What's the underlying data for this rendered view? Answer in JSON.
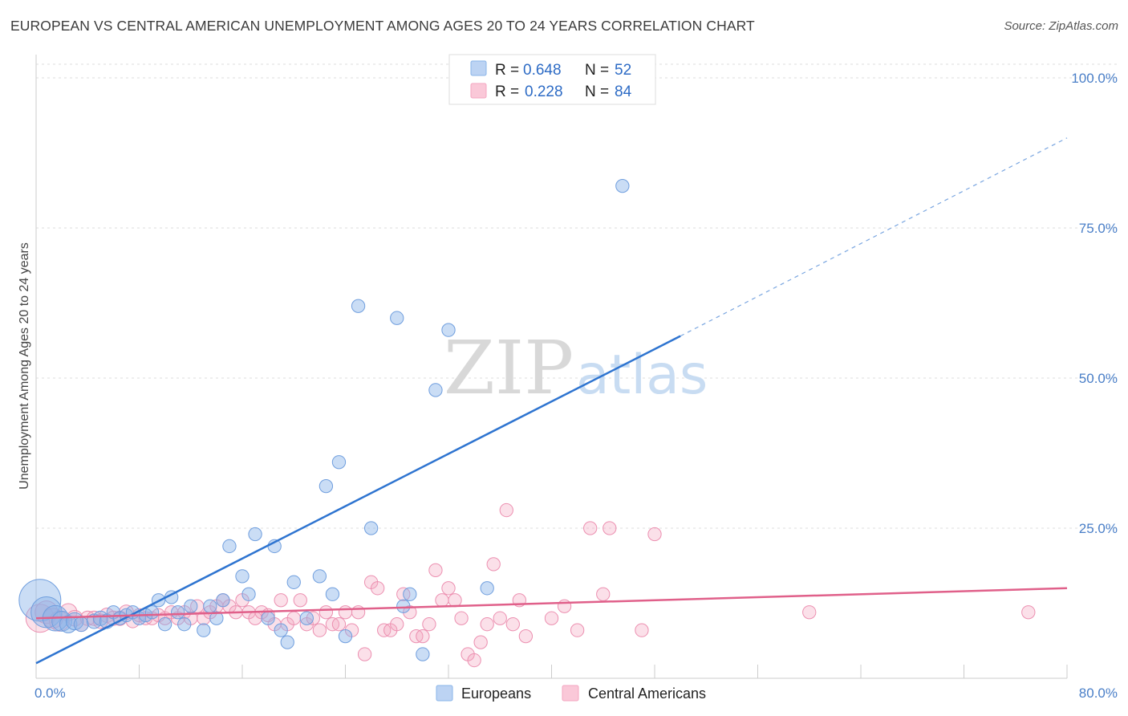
{
  "title": "EUROPEAN VS CENTRAL AMERICAN UNEMPLOYMENT AMONG AGES 20 TO 24 YEARS CORRELATION CHART",
  "source": "Source: ZipAtlas.com",
  "watermark": {
    "zip": "ZIP",
    "atlas": "atlas"
  },
  "chart_data": {
    "type": "scatter",
    "title": "EUROPEAN VS CENTRAL AMERICAN UNEMPLOYMENT AMONG AGES 20 TO 24 YEARS CORRELATION CHART",
    "xlabel": "",
    "ylabel": "Unemployment Among Ages 20 to 24 years",
    "xlim": [
      0,
      80
    ],
    "ylim": [
      0,
      105
    ],
    "x_tick_labels": [
      "0.0%",
      "80.0%"
    ],
    "y_ticks": [
      25,
      50,
      75,
      100
    ],
    "y_tick_labels": [
      "25.0%",
      "50.0%",
      "75.0%",
      "100.0%"
    ],
    "grid": true,
    "legend_position": "top-center",
    "series": [
      {
        "name": "Europeans",
        "color": "#8ab4e8",
        "line_color": "#2e74d0",
        "R": "0.648",
        "N": "52",
        "trend": {
          "x0": 0,
          "y0": 2.5,
          "x1": 50,
          "y1": 57,
          "dash_x1": 80,
          "dash_y1": 90
        },
        "points": [
          [
            0.3,
            13,
            30
          ],
          [
            0.8,
            11,
            22
          ],
          [
            1.5,
            10,
            18
          ],
          [
            2,
            9.5,
            14
          ],
          [
            2.5,
            9,
            12
          ],
          [
            3,
            9.5,
            12
          ],
          [
            3.5,
            9,
            10
          ],
          [
            4.5,
            9.5,
            10
          ],
          [
            5,
            10,
            10
          ],
          [
            5.5,
            9.5,
            10
          ],
          [
            6,
            11,
            9
          ],
          [
            6.5,
            10,
            9
          ],
          [
            7,
            10.5,
            9
          ],
          [
            7.5,
            11,
            9
          ],
          [
            8,
            10,
            9
          ],
          [
            8.5,
            10.5,
            9
          ],
          [
            9,
            11,
            9
          ],
          [
            9.5,
            13,
            9
          ],
          [
            10,
            9,
            9
          ],
          [
            10.5,
            13.5,
            9
          ],
          [
            11,
            11,
            9
          ],
          [
            11.5,
            9,
            9
          ],
          [
            12,
            12,
            9
          ],
          [
            13,
            8,
            9
          ],
          [
            13.5,
            12,
            9
          ],
          [
            14,
            10,
            9
          ],
          [
            14.5,
            13,
            9
          ],
          [
            15,
            22,
            9
          ],
          [
            16,
            17,
            9
          ],
          [
            16.5,
            14,
            9
          ],
          [
            17,
            24,
            9
          ],
          [
            18,
            10,
            9
          ],
          [
            18.5,
            22,
            9
          ],
          [
            19,
            8,
            9
          ],
          [
            19.5,
            6,
            9
          ],
          [
            20,
            16,
            9
          ],
          [
            21,
            10,
            9
          ],
          [
            22,
            17,
            9
          ],
          [
            22.5,
            32,
            9
          ],
          [
            23,
            14,
            9
          ],
          [
            23.5,
            36,
            9
          ],
          [
            24,
            7,
            9
          ],
          [
            25,
            62,
            9
          ],
          [
            26,
            25,
            9
          ],
          [
            28,
            60,
            9
          ],
          [
            28.5,
            12,
            9
          ],
          [
            29,
            14,
            9
          ],
          [
            30,
            4,
            9
          ],
          [
            31,
            48,
            9
          ],
          [
            32,
            58,
            9
          ],
          [
            35,
            15,
            9
          ],
          [
            45.5,
            82,
            9
          ]
        ]
      },
      {
        "name": "Central Americans",
        "color": "#f4a6c0",
        "line_color": "#e0608a",
        "R": "0.228",
        "N": "84",
        "trend": {
          "x0": 0,
          "y0": 10,
          "x1": 80,
          "y1": 15
        },
        "points": [
          [
            0.3,
            10,
            20
          ],
          [
            0.8,
            11,
            16
          ],
          [
            1.3,
            10,
            14
          ],
          [
            1.8,
            9.5,
            14
          ],
          [
            2.5,
            11,
            12
          ],
          [
            3,
            10,
            11
          ],
          [
            3.5,
            9,
            10
          ],
          [
            4,
            10,
            10
          ],
          [
            4.5,
            10,
            10
          ],
          [
            5,
            9.5,
            10
          ],
          [
            5.5,
            10.5,
            10
          ],
          [
            6,
            10,
            10
          ],
          [
            6.5,
            10,
            10
          ],
          [
            7,
            11,
            10
          ],
          [
            7.5,
            9.5,
            9
          ],
          [
            8,
            10.5,
            9
          ],
          [
            8.5,
            10,
            9
          ],
          [
            9,
            10,
            9
          ],
          [
            9.5,
            10.5,
            9
          ],
          [
            10,
            10,
            9
          ],
          [
            10.5,
            11,
            9
          ],
          [
            11,
            10,
            9
          ],
          [
            11.5,
            11,
            9
          ],
          [
            12,
            10,
            9
          ],
          [
            12.5,
            12,
            9
          ],
          [
            13,
            10,
            9
          ],
          [
            13.5,
            11,
            9
          ],
          [
            14,
            12,
            9
          ],
          [
            14.5,
            13,
            9
          ],
          [
            15,
            12,
            9
          ],
          [
            15.5,
            11,
            9
          ],
          [
            16,
            13,
            9
          ],
          [
            16.5,
            11,
            9
          ],
          [
            17,
            10,
            9
          ],
          [
            17.5,
            11,
            9
          ],
          [
            18,
            10.5,
            9
          ],
          [
            18.5,
            9,
            9
          ],
          [
            19,
            13,
            9
          ],
          [
            19.5,
            9,
            9
          ],
          [
            20,
            10,
            9
          ],
          [
            20.5,
            13,
            9
          ],
          [
            21,
            9,
            9
          ],
          [
            21.5,
            10,
            9
          ],
          [
            22,
            8,
            9
          ],
          [
            22.5,
            11,
            9
          ],
          [
            23,
            9,
            9
          ],
          [
            23.5,
            9,
            9
          ],
          [
            24,
            11,
            9
          ],
          [
            24.5,
            8,
            9
          ],
          [
            25,
            11,
            9
          ],
          [
            25.5,
            4,
            9
          ],
          [
            26,
            16,
            9
          ],
          [
            26.5,
            15,
            9
          ],
          [
            27,
            8,
            9
          ],
          [
            27.5,
            8,
            9
          ],
          [
            28,
            9,
            9
          ],
          [
            28.5,
            14,
            9
          ],
          [
            29,
            11,
            9
          ],
          [
            29.5,
            7,
            9
          ],
          [
            30,
            7,
            9
          ],
          [
            30.5,
            9,
            9
          ],
          [
            31,
            18,
            9
          ],
          [
            31.5,
            13,
            9
          ],
          [
            32,
            15,
            9
          ],
          [
            32.5,
            13,
            9
          ],
          [
            33,
            10,
            9
          ],
          [
            33.5,
            4,
            9
          ],
          [
            34,
            3,
            9
          ],
          [
            34.5,
            6,
            9
          ],
          [
            35,
            9,
            9
          ],
          [
            35.5,
            19,
            9
          ],
          [
            36,
            10,
            9
          ],
          [
            36.5,
            28,
            9
          ],
          [
            37,
            9,
            9
          ],
          [
            37.5,
            13,
            9
          ],
          [
            38,
            7,
            9
          ],
          [
            40,
            10,
            9
          ],
          [
            41,
            12,
            9
          ],
          [
            42,
            8,
            9
          ],
          [
            43,
            25,
            9
          ],
          [
            44,
            14,
            9
          ],
          [
            44.5,
            25,
            9
          ],
          [
            47,
            8,
            9
          ],
          [
            48,
            24,
            9
          ],
          [
            60,
            11,
            9
          ],
          [
            77,
            11,
            9
          ]
        ]
      }
    ]
  }
}
